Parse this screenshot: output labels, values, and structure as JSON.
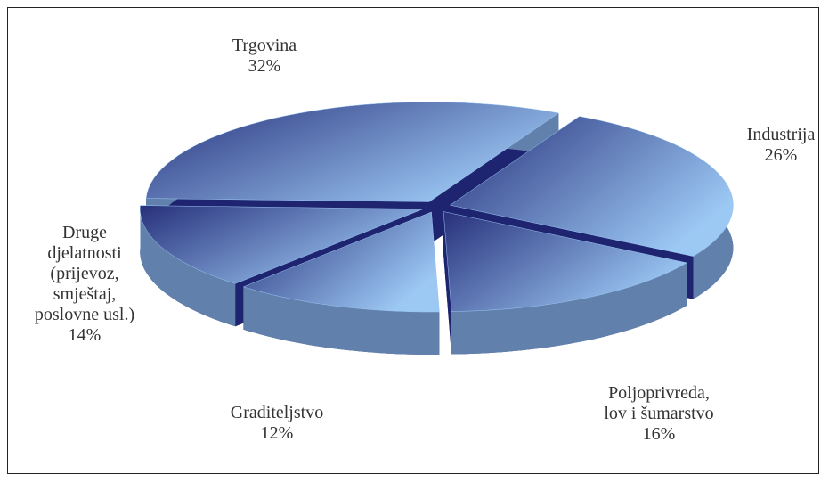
{
  "chart_data": {
    "type": "pie",
    "categories": [
      "Trgovina",
      "Industrija",
      "Poljoprivreda,\nlov i šumarstvo",
      "Graditeljstvo",
      "Druge\ndjelatnosti\n(prijevoz,\nsmještaj,\nposlovne usl.)"
    ],
    "values": [
      32,
      26,
      16,
      12,
      14
    ],
    "value_labels": [
      "32%",
      "26%",
      "16%",
      "12%",
      "14%"
    ],
    "color": "#9cc8f4"
  }
}
